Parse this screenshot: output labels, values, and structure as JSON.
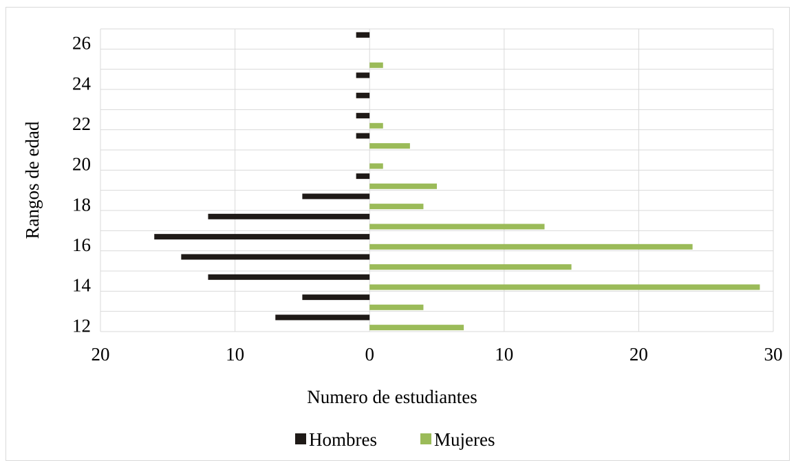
{
  "chart_data": {
    "type": "bar",
    "orientation": "horizontal",
    "title": "",
    "xlabel": "Numero de estudiantes",
    "ylabel": "Rangos de edad",
    "categories": [
      "12",
      "13",
      "14",
      "15",
      "16",
      "17",
      "18",
      "19",
      "20",
      "21",
      "22",
      "23",
      "24",
      "25",
      "26"
    ],
    "y_tick_labels": [
      "12",
      "14",
      "16",
      "18",
      "20",
      "22",
      "24",
      "26"
    ],
    "x_tick_labels": [
      "20",
      "10",
      "0",
      "10",
      "20",
      "30"
    ],
    "xlim": [
      -20,
      30
    ],
    "grid": true,
    "legend_position": "bottom",
    "series": [
      {
        "name": "Hombres",
        "values": [
          7,
          5,
          12,
          14,
          16,
          12,
          5,
          1,
          0,
          1,
          1,
          1,
          1,
          0,
          1
        ],
        "color": "#1f1a17",
        "direction": "left"
      },
      {
        "name": "Mujeres",
        "values": [
          7,
          4,
          29,
          15,
          24,
          13,
          4,
          5,
          1,
          3,
          1,
          0,
          0,
          1,
          0
        ],
        "color": "#9bbb59",
        "direction": "right"
      }
    ]
  }
}
